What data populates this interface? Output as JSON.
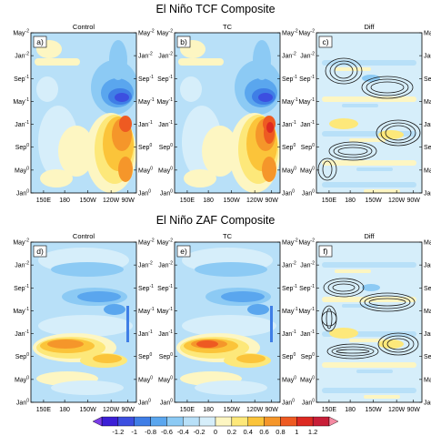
{
  "figure": {
    "rows": [
      {
        "title": "El Niño TCF Composite",
        "panels": [
          {
            "label": "a)",
            "name": "Control"
          },
          {
            "label": "b)",
            "name": "TC"
          },
          {
            "label": "c)",
            "name": "Diff"
          }
        ]
      },
      {
        "title": "El Niño ZAF Composite",
        "panels": [
          {
            "label": "d)",
            "name": "Control"
          },
          {
            "label": "e)",
            "name": "TC"
          },
          {
            "label": "f)",
            "name": "Diff"
          }
        ]
      }
    ],
    "xticks": [
      "150E",
      "180",
      "150W",
      "120W",
      "90W"
    ],
    "yticks": [
      {
        "main": "May",
        "sup": "-2"
      },
      {
        "main": "Jan",
        "sup": "-2"
      },
      {
        "main": "Sep",
        "sup": "-1"
      },
      {
        "main": "May",
        "sup": "-1"
      },
      {
        "main": "Jan",
        "sup": "-1"
      },
      {
        "main": "Sep",
        "sup": "0"
      },
      {
        "main": "May",
        "sup": "0"
      },
      {
        "main": "Jan",
        "sup": "0"
      }
    ]
  },
  "chart_data": {
    "type": "heatmap",
    "colorbar": {
      "labels": [
        "-1.2",
        "-1",
        "-0.8",
        "-0.6",
        "-0.4",
        "-0.2",
        "0",
        "0.2",
        "0.4",
        "0.6",
        "0.8",
        "1",
        "1.2"
      ],
      "colors": [
        "#3b1fd6",
        "#3c4fe0",
        "#3f7ee6",
        "#5aa6ee",
        "#8ccaf4",
        "#b8e0f8",
        "#d6eefa",
        "#fdf6c2",
        "#fde87a",
        "#fbc43a",
        "#f5962a",
        "#ee5a22",
        "#dd2a22",
        "#c81e38"
      ],
      "end_arrows": [
        "#7b3ce8",
        "#f58aa2"
      ]
    },
    "panels_fields": [
      {
        "panel": "a",
        "features": [
          {
            "x": "120W-100W",
            "y": "May-1",
            "value": -1.0
          },
          {
            "x": "110W-90W",
            "y": "Jan-1 to Sep0",
            "value": 0.8
          }
        ]
      },
      {
        "panel": "b",
        "features": [
          {
            "x": "120W-100W",
            "y": "May-1",
            "value": -1.0
          },
          {
            "x": "110W-90W",
            "y": "Jan-1 to Sep0",
            "value": 1.0
          }
        ]
      },
      {
        "panel": "c",
        "features": [
          {
            "x": "150E-90W",
            "y": "Sep0 to Jan-1",
            "value": 0.3
          }
        ]
      },
      {
        "panel": "d",
        "features": [
          {
            "x": "150E-150W",
            "y": "Sep0",
            "value": 0.8
          },
          {
            "x": "180-120W",
            "y": "Sep-1",
            "value": -0.6
          }
        ]
      },
      {
        "panel": "e",
        "features": [
          {
            "x": "150E-150W",
            "y": "Sep0",
            "value": 0.9
          },
          {
            "x": "180-120W",
            "y": "Sep-1",
            "value": -0.6
          }
        ]
      },
      {
        "panel": "f",
        "features": [
          {
            "x": "150E-90W",
            "y": "Jan-1",
            "value": 0.3
          }
        ]
      }
    ]
  }
}
